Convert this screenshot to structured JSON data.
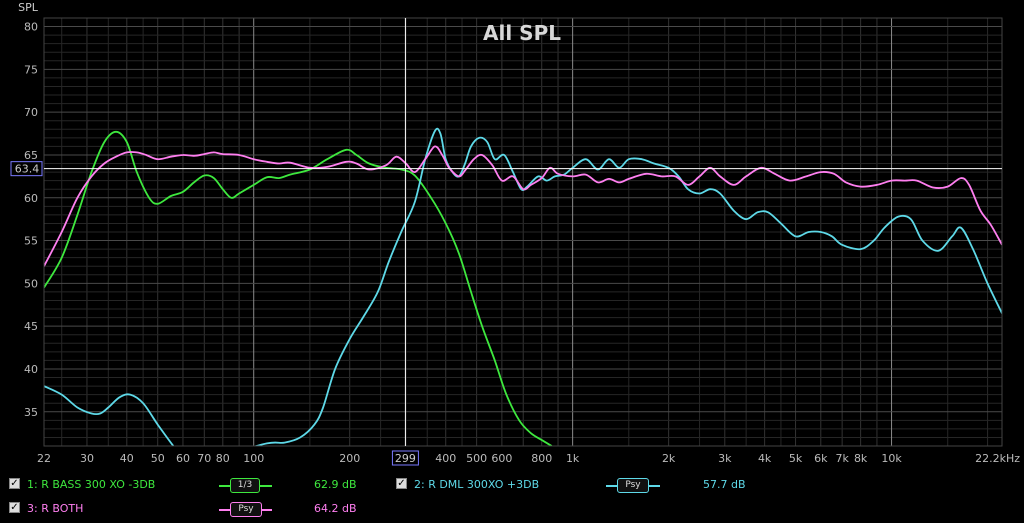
{
  "chart_data": {
    "type": "line",
    "title": "All SPL",
    "ylabel": "SPL",
    "xlabel": "",
    "x_scale": "log",
    "xlim": [
      22,
      22200
    ],
    "ylim": [
      31,
      81
    ],
    "y_ticks": [
      35,
      40,
      45,
      50,
      55,
      60,
      65,
      70,
      75,
      80
    ],
    "x_ticks": [
      {
        "v": 22,
        "l": "22"
      },
      {
        "v": 30,
        "l": "30"
      },
      {
        "v": 40,
        "l": "40"
      },
      {
        "v": 50,
        "l": "50"
      },
      {
        "v": 60,
        "l": "60"
      },
      {
        "v": 70,
        "l": "70"
      },
      {
        "v": 80,
        "l": "80"
      },
      {
        "v": 100,
        "l": "100"
      },
      {
        "v": 200,
        "l": "200"
      },
      {
        "v": 400,
        "l": "400"
      },
      {
        "v": 500,
        "l": "500"
      },
      {
        "v": 600,
        "l": "600"
      },
      {
        "v": 800,
        "l": "800"
      },
      {
        "v": 1000,
        "l": "1k"
      },
      {
        "v": 2000,
        "l": "2k"
      },
      {
        "v": 3000,
        "l": "3k"
      },
      {
        "v": 4000,
        "l": "4k"
      },
      {
        "v": 5000,
        "l": "5k"
      },
      {
        "v": 6000,
        "l": "6k"
      },
      {
        "v": 7000,
        "l": "7k"
      },
      {
        "v": 8000,
        "l": "8k"
      },
      {
        "v": 10000,
        "l": "10k"
      },
      {
        "v": 22200,
        "l": "22.2kHz"
      }
    ],
    "cursor": {
      "x": 299,
      "x_label": "299",
      "y": 63.4,
      "y_label": "63.4"
    },
    "grid": true,
    "series": [
      {
        "name": "1: R BASS 300 XO -3DB",
        "color": "#3ee83e",
        "points": [
          [
            22,
            49.5
          ],
          [
            25,
            53
          ],
          [
            28,
            58
          ],
          [
            31,
            63
          ],
          [
            34,
            66.5
          ],
          [
            37,
            67.7
          ],
          [
            40,
            66.5
          ],
          [
            43,
            63
          ],
          [
            47,
            60
          ],
          [
            50,
            59.3
          ],
          [
            55,
            60.2
          ],
          [
            60,
            60.7
          ],
          [
            65,
            61.8
          ],
          [
            70,
            62.6
          ],
          [
            75,
            62.3
          ],
          [
            80,
            61
          ],
          [
            85,
            60
          ],
          [
            90,
            60.5
          ],
          [
            100,
            61.5
          ],
          [
            110,
            62.4
          ],
          [
            120,
            62.3
          ],
          [
            130,
            62.7
          ],
          [
            150,
            63.3
          ],
          [
            170,
            64.5
          ],
          [
            195,
            65.6
          ],
          [
            210,
            65
          ],
          [
            230,
            64
          ],
          [
            260,
            63.5
          ],
          [
            290,
            63.3
          ],
          [
            320,
            62.6
          ],
          [
            360,
            60
          ],
          [
            400,
            57
          ],
          [
            440,
            53.5
          ],
          [
            480,
            49
          ],
          [
            520,
            45
          ],
          [
            570,
            41
          ],
          [
            620,
            37
          ],
          [
            680,
            34
          ],
          [
            740,
            32.5
          ],
          [
            800,
            31.7
          ],
          [
            860,
            31
          ]
        ]
      },
      {
        "name": "2: R DML 300XO +3DB",
        "color": "#5ed9e8",
        "points": [
          [
            22,
            38
          ],
          [
            25,
            37
          ],
          [
            28,
            35.5
          ],
          [
            31,
            34.8
          ],
          [
            33,
            34.8
          ],
          [
            35,
            35.5
          ],
          [
            38,
            36.7
          ],
          [
            41,
            37
          ],
          [
            45,
            36
          ],
          [
            50,
            33.5
          ],
          [
            56,
            31
          ],
          [
            58,
            30.5
          ],
          [
            65,
            30
          ],
          [
            80,
            30
          ],
          [
            110,
            31.3
          ],
          [
            125,
            31.4
          ],
          [
            140,
            32
          ],
          [
            155,
            33.5
          ],
          [
            165,
            35.5
          ],
          [
            180,
            40
          ],
          [
            200,
            43.5
          ],
          [
            220,
            46
          ],
          [
            245,
            49
          ],
          [
            265,
            52.5
          ],
          [
            290,
            56
          ],
          [
            320,
            59.5
          ],
          [
            345,
            64.5
          ],
          [
            370,
            67.8
          ],
          [
            385,
            67.5
          ],
          [
            400,
            64.5
          ],
          [
            420,
            63
          ],
          [
            440,
            62.5
          ],
          [
            460,
            64
          ],
          [
            480,
            66
          ],
          [
            510,
            67
          ],
          [
            540,
            66.5
          ],
          [
            570,
            64.5
          ],
          [
            610,
            65
          ],
          [
            650,
            63
          ],
          [
            690,
            61
          ],
          [
            720,
            61.3
          ],
          [
            780,
            62.5
          ],
          [
            830,
            62
          ],
          [
            880,
            62.5
          ],
          [
            940,
            62.7
          ],
          [
            1000,
            63.5
          ],
          [
            1100,
            64.5
          ],
          [
            1200,
            63.3
          ],
          [
            1300,
            64.5
          ],
          [
            1400,
            63.5
          ],
          [
            1500,
            64.5
          ],
          [
            1650,
            64.5
          ],
          [
            1800,
            64
          ],
          [
            2000,
            63.5
          ],
          [
            2150,
            62.5
          ],
          [
            2300,
            61
          ],
          [
            2500,
            60.5
          ],
          [
            2700,
            61
          ],
          [
            2900,
            60.5
          ],
          [
            3200,
            58.5
          ],
          [
            3500,
            57.5
          ],
          [
            3800,
            58.3
          ],
          [
            4100,
            58.3
          ],
          [
            4500,
            57
          ],
          [
            5000,
            55.5
          ],
          [
            5500,
            56
          ],
          [
            6000,
            56
          ],
          [
            6500,
            55.5
          ],
          [
            7000,
            54.5
          ],
          [
            8000,
            54
          ],
          [
            8800,
            55
          ],
          [
            9500,
            56.5
          ],
          [
            10500,
            57.8
          ],
          [
            11500,
            57.5
          ],
          [
            12500,
            55
          ],
          [
            14000,
            53.8
          ],
          [
            15500,
            55.5
          ],
          [
            16500,
            56.5
          ],
          [
            18000,
            54
          ],
          [
            20000,
            50
          ],
          [
            22200,
            46.5
          ]
        ]
      },
      {
        "name": "3: R BOTH",
        "color": "#ff7ff0",
        "points": [
          [
            22,
            52
          ],
          [
            25,
            56
          ],
          [
            28,
            60
          ],
          [
            31,
            62.5
          ],
          [
            34,
            64
          ],
          [
            37,
            64.8
          ],
          [
            40,
            65.3
          ],
          [
            43,
            65.3
          ],
          [
            46,
            65
          ],
          [
            50,
            64.5
          ],
          [
            55,
            64.8
          ],
          [
            60,
            65
          ],
          [
            65,
            64.9
          ],
          [
            70,
            65.1
          ],
          [
            75,
            65.3
          ],
          [
            80,
            65.1
          ],
          [
            90,
            65
          ],
          [
            100,
            64.5
          ],
          [
            110,
            64.2
          ],
          [
            120,
            64
          ],
          [
            130,
            64.1
          ],
          [
            150,
            63.5
          ],
          [
            170,
            63.6
          ],
          [
            195,
            64.2
          ],
          [
            210,
            64
          ],
          [
            230,
            63.3
          ],
          [
            260,
            63.8
          ],
          [
            280,
            64.8
          ],
          [
            300,
            64
          ],
          [
            320,
            63
          ],
          [
            345,
            64.5
          ],
          [
            370,
            66
          ],
          [
            390,
            65
          ],
          [
            410,
            63.5
          ],
          [
            440,
            62.5
          ],
          [
            460,
            63.2
          ],
          [
            490,
            64.5
          ],
          [
            520,
            65
          ],
          [
            560,
            63.8
          ],
          [
            600,
            62
          ],
          [
            650,
            62.5
          ],
          [
            700,
            61
          ],
          [
            740,
            61.5
          ],
          [
            800,
            62.3
          ],
          [
            850,
            63.5
          ],
          [
            900,
            62.8
          ],
          [
            1000,
            62.5
          ],
          [
            1100,
            62.7
          ],
          [
            1200,
            61.8
          ],
          [
            1300,
            62.2
          ],
          [
            1400,
            61.8
          ],
          [
            1500,
            62.2
          ],
          [
            1700,
            62.8
          ],
          [
            1900,
            62.5
          ],
          [
            2100,
            62.5
          ],
          [
            2300,
            61.5
          ],
          [
            2500,
            62.5
          ],
          [
            2700,
            63.5
          ],
          [
            2900,
            62.5
          ],
          [
            3200,
            61.5
          ],
          [
            3500,
            62.5
          ],
          [
            3900,
            63.5
          ],
          [
            4300,
            62.8
          ],
          [
            4800,
            62
          ],
          [
            5400,
            62.5
          ],
          [
            6000,
            63
          ],
          [
            6600,
            62.8
          ],
          [
            7200,
            61.8
          ],
          [
            8000,
            61.3
          ],
          [
            9000,
            61.5
          ],
          [
            10000,
            62
          ],
          [
            11000,
            62
          ],
          [
            12000,
            62
          ],
          [
            13500,
            61.2
          ],
          [
            15000,
            61.3
          ],
          [
            16500,
            62.3
          ],
          [
            17500,
            61.5
          ],
          [
            19000,
            58.5
          ],
          [
            20500,
            56.8
          ],
          [
            22200,
            54.5
          ]
        ]
      }
    ]
  },
  "legend": [
    {
      "checked": true,
      "label": "1: R BASS 300 XO -3DB",
      "smoothing": "1/3",
      "value": "62.9 dB",
      "color": "#3ee83e"
    },
    {
      "checked": true,
      "label": "2: R DML 300XO +3DB",
      "smoothing": "Psy",
      "value": "57.7 dB",
      "color": "#5ed9e8"
    },
    {
      "checked": true,
      "label": "3: R BOTH",
      "smoothing": "Psy",
      "value": "64.2 dB",
      "color": "#ff7ff0"
    }
  ],
  "checkmark": "✓"
}
